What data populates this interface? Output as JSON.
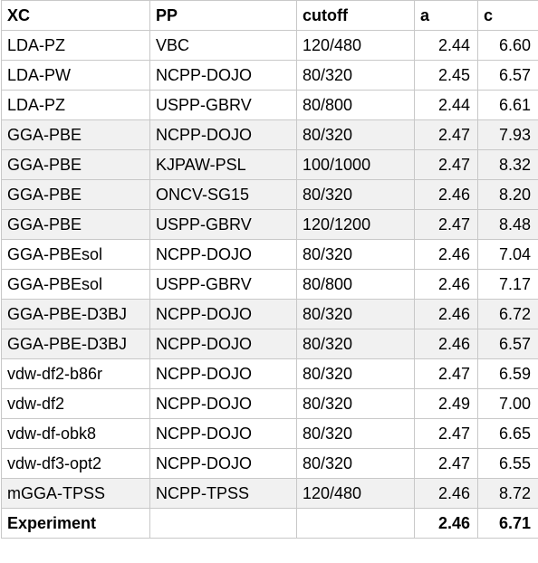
{
  "table": {
    "headers": [
      "XC",
      "PP",
      "cutoff",
      "a",
      "c"
    ],
    "rows": [
      {
        "xc": "LDA-PZ",
        "pp": "VBC",
        "cutoff": "120/480",
        "a": "2.44",
        "c": "6.60",
        "shaded": false
      },
      {
        "xc": "LDA-PW",
        "pp": "NCPP-DOJO",
        "cutoff": "80/320",
        "a": "2.45",
        "c": "6.57",
        "shaded": false
      },
      {
        "xc": "LDA-PZ",
        "pp": "USPP-GBRV",
        "cutoff": "80/800",
        "a": "2.44",
        "c": "6.61",
        "shaded": false
      },
      {
        "xc": "GGA-PBE",
        "pp": "NCPP-DOJO",
        "cutoff": "80/320",
        "a": "2.47",
        "c": "7.93",
        "shaded": true
      },
      {
        "xc": "GGA-PBE",
        "pp": "KJPAW-PSL",
        "cutoff": "100/1000",
        "a": "2.47",
        "c": "8.32",
        "shaded": true
      },
      {
        "xc": "GGA-PBE",
        "pp": "ONCV-SG15",
        "cutoff": "80/320",
        "a": "2.46",
        "c": "8.20",
        "shaded": true
      },
      {
        "xc": "GGA-PBE",
        "pp": "USPP-GBRV",
        "cutoff": "120/1200",
        "a": "2.47",
        "c": "8.48",
        "shaded": true
      },
      {
        "xc": "GGA-PBEsol",
        "pp": "NCPP-DOJO",
        "cutoff": "80/320",
        "a": "2.46",
        "c": "7.04",
        "shaded": false
      },
      {
        "xc": "GGA-PBEsol",
        "pp": "USPP-GBRV",
        "cutoff": "80/800",
        "a": "2.46",
        "c": "7.17",
        "shaded": false
      },
      {
        "xc": "GGA-PBE-D3BJ",
        "pp": "NCPP-DOJO",
        "cutoff": "80/320",
        "a": "2.46",
        "c": "6.72",
        "shaded": true
      },
      {
        "xc": "GGA-PBE-D3BJ",
        "pp": "NCPP-DOJO",
        "cutoff": "80/320",
        "a": "2.46",
        "c": "6.57",
        "shaded": true
      },
      {
        "xc": "vdw-df2-b86r",
        "pp": "NCPP-DOJO",
        "cutoff": "80/320",
        "a": "2.47",
        "c": "6.59",
        "shaded": false
      },
      {
        "xc": "vdw-df2",
        "pp": "NCPP-DOJO",
        "cutoff": "80/320",
        "a": "2.49",
        "c": "7.00",
        "shaded": false
      },
      {
        "xc": "vdw-df-obk8",
        "pp": "NCPP-DOJO",
        "cutoff": "80/320",
        "a": "2.47",
        "c": "6.65",
        "shaded": false
      },
      {
        "xc": "vdw-df3-opt2",
        "pp": "NCPP-DOJO",
        "cutoff": "80/320",
        "a": "2.47",
        "c": "6.55",
        "shaded": false
      },
      {
        "xc": "mGGA-TPSS",
        "pp": "NCPP-TPSS",
        "cutoff": "120/480",
        "a": "2.46",
        "c": "8.72",
        "shaded": true
      }
    ],
    "experiment": {
      "xc": "Experiment",
      "pp": "",
      "cutoff": "",
      "a": "2.46",
      "c": "6.71"
    }
  }
}
